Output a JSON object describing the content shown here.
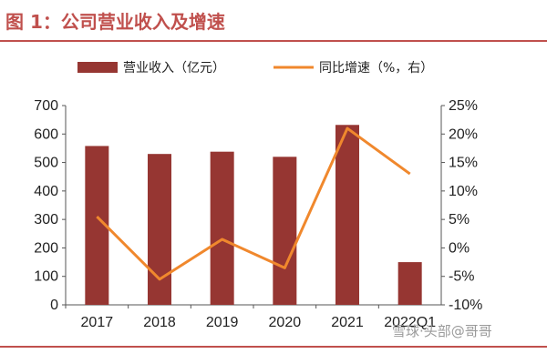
{
  "header": {
    "title": "图 1：公司营业收入及增速"
  },
  "watermark": {
    "text": "雪球·头部@哥哥"
  },
  "colors": {
    "accent": "#c0504d",
    "bar": "#963632",
    "line": "#f0882d"
  },
  "chart_data": {
    "type": "bar+line",
    "categories": [
      "2017",
      "2018",
      "2019",
      "2020",
      "2021",
      "2022Q1"
    ],
    "series": [
      {
        "name": "营业收入（亿元）",
        "kind": "bar",
        "axis": "left",
        "values": [
          558,
          530,
          538,
          520,
          632,
          150
        ]
      },
      {
        "name": "同比增速（%，右）",
        "kind": "line",
        "axis": "right",
        "values": [
          5.5,
          -5.5,
          1.5,
          -3.5,
          21.0,
          13.0
        ]
      }
    ],
    "left_axis": {
      "min": 0,
      "max": 700,
      "step": 100,
      "ticks": [
        "0",
        "100",
        "200",
        "300",
        "400",
        "500",
        "600",
        "700"
      ]
    },
    "right_axis": {
      "min": -10,
      "max": 25,
      "step": 5,
      "ticks": [
        "-10%",
        "-5%",
        "0%",
        "5%",
        "10%",
        "15%",
        "20%",
        "25%"
      ]
    },
    "legend_position": "top"
  }
}
